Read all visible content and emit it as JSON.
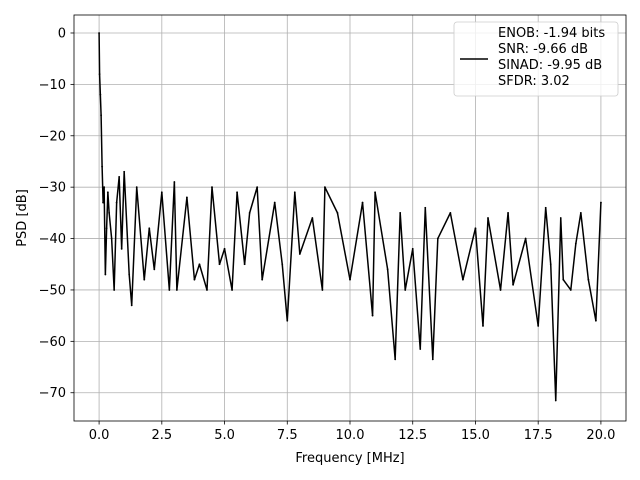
{
  "chart_data": {
    "type": "line",
    "title": "",
    "xlabel": "Frequency [MHz]",
    "ylabel": "PSD [dB]",
    "xlim": [
      -1.0,
      21.0
    ],
    "ylim": [
      -75.5,
      3.5
    ],
    "xticks": [
      0.0,
      2.5,
      5.0,
      7.5,
      10.0,
      12.5,
      15.0,
      17.5,
      20.0
    ],
    "xtick_labels": [
      "0.0",
      "2.5",
      "5.0",
      "7.5",
      "10.0",
      "12.5",
      "15.0",
      "17.5",
      "20.0"
    ],
    "yticks": [
      0,
      -10,
      -20,
      -30,
      -40,
      -50,
      -60,
      -70
    ],
    "ytick_labels": [
      "0",
      "−10",
      "−20",
      "−30",
      "−40",
      "−50",
      "−60",
      "−70"
    ],
    "grid": true,
    "legend_position": "top-right",
    "series": [
      {
        "color": "#000000",
        "legend_lines": [
          "ENOB: -1.94 bits",
          "SNR: -9.66 dB",
          "SINAD: -9.95 dB",
          "SFDR: 3.02"
        ],
        "x": [
          0.0,
          0.02,
          0.05,
          0.08,
          0.12,
          0.16,
          0.2,
          0.25,
          0.3,
          0.35,
          0.4,
          0.5,
          0.6,
          0.7,
          0.8,
          0.9,
          1.0,
          1.2,
          1.3,
          1.5,
          1.8,
          2.0,
          2.2,
          2.5,
          2.8,
          3.0,
          3.1,
          3.5,
          3.8,
          4.0,
          4.3,
          4.5,
          4.8,
          5.0,
          5.3,
          5.5,
          5.8,
          6.0,
          6.3,
          6.5,
          7.0,
          7.3,
          7.5,
          7.8,
          8.0,
          8.5,
          8.9,
          9.0,
          9.5,
          10.0,
          10.5,
          10.9,
          11.0,
          11.5,
          11.8,
          12.0,
          12.2,
          12.5,
          12.8,
          13.0,
          13.3,
          13.5,
          14.0,
          14.5,
          15.0,
          15.3,
          15.5,
          16.0,
          16.3,
          16.5,
          17.0,
          17.5,
          17.8,
          18.0,
          18.2,
          18.4,
          18.5,
          18.8,
          19.0,
          19.2,
          19.5,
          19.8,
          20.0
        ],
        "y": [
          0.0,
          -8.0,
          -12.0,
          -16.0,
          -26.0,
          -33.0,
          -30.0,
          -47.0,
          -38.0,
          -31.0,
          -35.0,
          -40.0,
          -50.0,
          -33.0,
          -28.0,
          -42.0,
          -27.0,
          -47.0,
          -53.0,
          -30.0,
          -48.0,
          -38.0,
          -46.0,
          -31.0,
          -50.0,
          -29.0,
          -50.0,
          -32.0,
          -48.0,
          -45.0,
          -50.0,
          -30.0,
          -45.0,
          -42.0,
          -50.0,
          -31.0,
          -45.0,
          -35.0,
          -30.0,
          -48.0,
          -33.0,
          -45.0,
          -56.0,
          -31.0,
          -43.0,
          -36.0,
          -50.0,
          -30.0,
          -35.0,
          -48.0,
          -33.0,
          -55.0,
          -31.0,
          -46.0,
          -63.5,
          -35.0,
          -50.0,
          -42.0,
          -61.5,
          -34.0,
          -63.5,
          -40.0,
          -35.0,
          -48.0,
          -38.0,
          -57.0,
          -36.0,
          -50.0,
          -35.0,
          -49.0,
          -40.0,
          -57.0,
          -34.0,
          -45.0,
          -71.5,
          -36.0,
          -48.0,
          -50.0,
          -41.0,
          -35.0,
          -48.0,
          -56.0,
          -33.0
        ]
      }
    ]
  }
}
